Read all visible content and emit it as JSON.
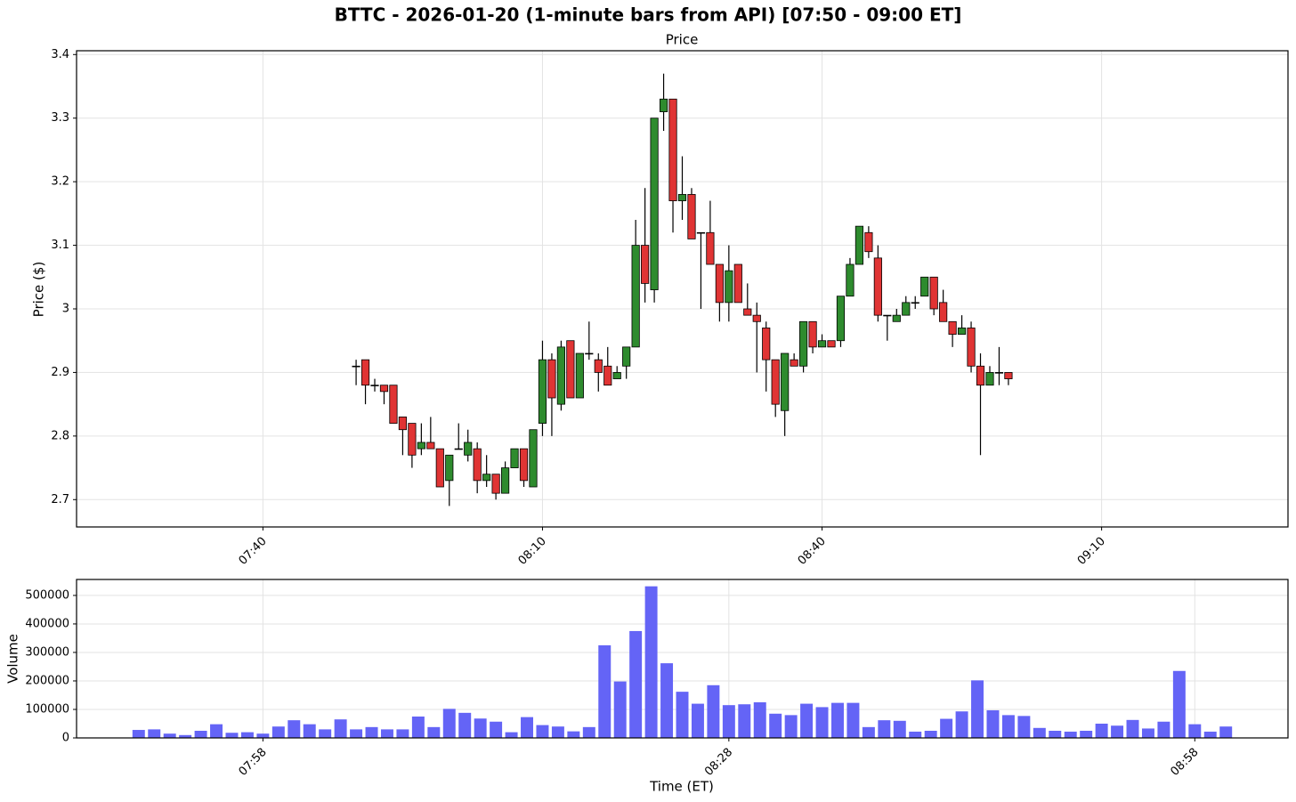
{
  "chart_data": [
    {
      "type": "candlestick",
      "title": "BTTC - 2026-01-20 (1-minute bars from API) [07:50 - 09:00 ET]",
      "subtitle": "Price",
      "ylabel": "Price ($)",
      "x": [
        "07:50",
        "07:51",
        "07:52",
        "07:53",
        "07:54",
        "07:55",
        "07:56",
        "07:57",
        "07:58",
        "07:59",
        "08:00",
        "08:01",
        "08:02",
        "08:03",
        "08:04",
        "08:05",
        "08:06",
        "08:07",
        "08:08",
        "08:09",
        "08:10",
        "08:11",
        "08:12",
        "08:13",
        "08:14",
        "08:15",
        "08:16",
        "08:17",
        "08:18",
        "08:19",
        "08:20",
        "08:21",
        "08:22",
        "08:23",
        "08:24",
        "08:25",
        "08:26",
        "08:27",
        "08:28",
        "08:29",
        "08:30",
        "08:31",
        "08:32",
        "08:33",
        "08:34",
        "08:35",
        "08:36",
        "08:37",
        "08:38",
        "08:39",
        "08:40",
        "08:41",
        "08:42",
        "08:43",
        "08:44",
        "08:45",
        "08:46",
        "08:47",
        "08:48",
        "08:49",
        "08:50",
        "08:51",
        "08:52",
        "08:53",
        "08:54",
        "08:55",
        "08:56",
        "08:57",
        "08:58",
        "08:59",
        "09:00"
      ],
      "open": [
        2.91,
        2.92,
        2.88,
        2.88,
        2.88,
        2.83,
        2.82,
        2.78,
        2.79,
        2.78,
        2.73,
        2.78,
        2.77,
        2.78,
        2.73,
        2.74,
        2.71,
        2.75,
        2.78,
        2.72,
        2.82,
        2.92,
        2.85,
        2.95,
        2.86,
        2.93,
        2.92,
        2.91,
        2.89,
        2.91,
        2.94,
        3.1,
        3.03,
        3.31,
        3.33,
        3.17,
        3.18,
        3.12,
        3.12,
        3.07,
        3.01,
        3.07,
        3.0,
        2.99,
        2.97,
        2.92,
        2.84,
        2.92,
        2.91,
        2.98,
        2.94,
        2.95,
        2.95,
        3.02,
        3.07,
        3.12,
        3.08,
        2.99,
        2.98,
        2.99,
        3.01,
        3.02,
        3.05,
        3.01,
        2.98,
        2.96,
        2.97,
        2.91,
        2.88,
        2.9,
        2.9
      ],
      "high": [
        2.92,
        2.92,
        2.89,
        2.88,
        2.88,
        2.83,
        2.82,
        2.82,
        2.83,
        2.78,
        2.77,
        2.82,
        2.81,
        2.79,
        2.77,
        2.74,
        2.76,
        2.78,
        2.78,
        2.81,
        2.95,
        2.93,
        2.95,
        2.95,
        2.93,
        2.98,
        2.93,
        2.94,
        2.91,
        2.94,
        3.14,
        3.19,
        3.3,
        3.37,
        3.33,
        3.24,
        3.19,
        3.12,
        3.17,
        3.07,
        3.1,
        3.07,
        3.04,
        3.01,
        2.98,
        2.92,
        2.93,
        2.93,
        2.98,
        2.98,
        2.96,
        2.95,
        3.02,
        3.08,
        3.13,
        3.13,
        3.1,
        2.99,
        3.0,
        3.02,
        3.02,
        3.05,
        3.05,
        3.03,
        2.98,
        2.99,
        2.98,
        2.93,
        2.91,
        2.94,
        2.9
      ],
      "low": [
        2.88,
        2.85,
        2.87,
        2.85,
        2.82,
        2.77,
        2.75,
        2.77,
        2.78,
        2.72,
        2.69,
        2.78,
        2.76,
        2.71,
        2.72,
        2.7,
        2.71,
        2.75,
        2.72,
        2.72,
        2.8,
        2.8,
        2.84,
        2.86,
        2.86,
        2.92,
        2.87,
        2.88,
        2.89,
        2.89,
        2.94,
        3.01,
        3.01,
        3.28,
        3.12,
        3.14,
        3.11,
        3.0,
        3.07,
        2.98,
        2.98,
        3.01,
        2.99,
        2.9,
        2.87,
        2.83,
        2.8,
        2.91,
        2.9,
        2.93,
        2.94,
        2.94,
        2.94,
        3.02,
        3.07,
        3.08,
        2.98,
        2.95,
        2.98,
        2.99,
        3.0,
        3.02,
        2.99,
        2.98,
        2.94,
        2.96,
        2.9,
        2.77,
        2.88,
        2.88,
        2.88
      ],
      "close": [
        2.91,
        2.88,
        2.88,
        2.87,
        2.82,
        2.81,
        2.77,
        2.79,
        2.78,
        2.72,
        2.77,
        2.78,
        2.79,
        2.73,
        2.74,
        2.71,
        2.75,
        2.78,
        2.73,
        2.81,
        2.92,
        2.86,
        2.94,
        2.86,
        2.93,
        2.93,
        2.9,
        2.88,
        2.9,
        2.94,
        3.1,
        3.04,
        3.3,
        3.33,
        3.17,
        3.18,
        3.11,
        3.12,
        3.07,
        3.01,
        3.06,
        3.01,
        2.99,
        2.98,
        2.92,
        2.85,
        2.93,
        2.91,
        2.98,
        2.94,
        2.95,
        2.94,
        3.02,
        3.07,
        3.13,
        3.09,
        2.99,
        2.99,
        2.99,
        3.01,
        3.01,
        3.05,
        3.0,
        2.98,
        2.96,
        2.97,
        2.91,
        2.88,
        2.9,
        2.9,
        2.89
      ],
      "up_color": "#2e8b2e",
      "down_color": "#e03434",
      "xlim": [
        "07:20",
        "09:30"
      ],
      "xticks": [
        "07:40",
        "08:10",
        "08:40",
        "09:10"
      ],
      "ylim": [
        2.657,
        3.406
      ],
      "yticks": [
        2.7,
        2.8,
        2.9,
        3.0,
        3.1,
        3.2,
        3.3,
        3.4
      ],
      "grid": true
    },
    {
      "type": "bar",
      "xlabel": "Time (ET)",
      "ylabel": "Volume",
      "x": [
        "07:50",
        "07:51",
        "07:52",
        "07:53",
        "07:54",
        "07:55",
        "07:56",
        "07:57",
        "07:58",
        "07:59",
        "08:00",
        "08:01",
        "08:02",
        "08:03",
        "08:04",
        "08:05",
        "08:06",
        "08:07",
        "08:08",
        "08:09",
        "08:10",
        "08:11",
        "08:12",
        "08:13",
        "08:14",
        "08:15",
        "08:16",
        "08:17",
        "08:18",
        "08:19",
        "08:20",
        "08:21",
        "08:22",
        "08:23",
        "08:24",
        "08:25",
        "08:26",
        "08:27",
        "08:28",
        "08:29",
        "08:30",
        "08:31",
        "08:32",
        "08:33",
        "08:34",
        "08:35",
        "08:36",
        "08:37",
        "08:38",
        "08:39",
        "08:40",
        "08:41",
        "08:42",
        "08:43",
        "08:44",
        "08:45",
        "08:46",
        "08:47",
        "08:48",
        "08:49",
        "08:50",
        "08:51",
        "08:52",
        "08:53",
        "08:54",
        "08:55",
        "08:56",
        "08:57",
        "08:58",
        "08:59",
        "09:00"
      ],
      "values": [
        28000,
        30000,
        15000,
        10000,
        25000,
        48000,
        18000,
        20000,
        15000,
        40000,
        62000,
        48000,
        30000,
        65000,
        30000,
        38000,
        30000,
        30000,
        75000,
        38000,
        102000,
        88000,
        68000,
        57000,
        20000,
        73000,
        45000,
        40000,
        23000,
        38000,
        325000,
        198000,
        375000,
        532000,
        262000,
        162000,
        120000,
        185000,
        115000,
        118000,
        125000,
        85000,
        80000,
        120000,
        108000,
        123000,
        123000,
        38000,
        62000,
        60000,
        22000,
        25000,
        67000,
        93000,
        202000,
        97000,
        80000,
        77000,
        35000,
        25000,
        22000,
        25000,
        50000,
        43000,
        63000,
        33000,
        57000,
        235000,
        48000,
        22000,
        40000
      ],
      "color": "#6464f6",
      "xlim": [
        "07:46",
        "09:04"
      ],
      "xticks": [
        "07:58",
        "08:28",
        "08:58"
      ],
      "ylim": [
        0,
        556000
      ],
      "yticks": [
        0,
        100000,
        200000,
        300000,
        400000,
        500000
      ],
      "grid": true
    }
  ]
}
